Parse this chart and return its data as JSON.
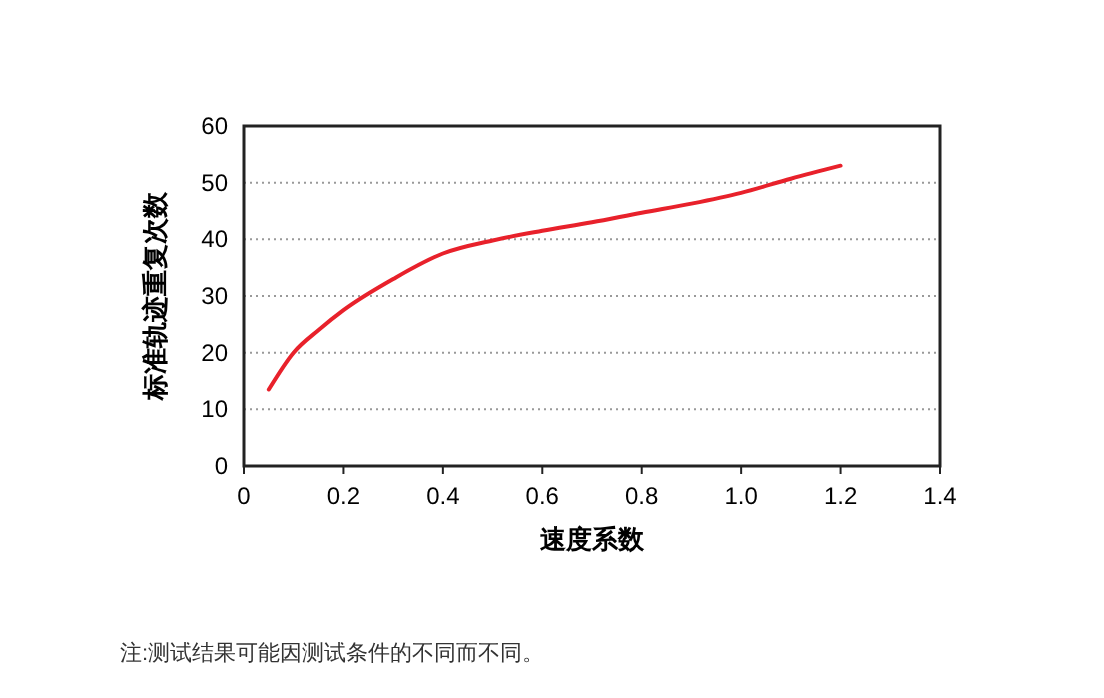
{
  "chart_data": {
    "type": "line",
    "xlabel": "速度系数",
    "ylabel": "标准轨迹重复次数",
    "annotations": [
      "注:测试结果可能因测试条件的不同而不同。"
    ],
    "series": [
      {
        "color": "#e8212b",
        "x": [
          0.05,
          0.1,
          0.15,
          0.2,
          0.3,
          0.4,
          0.5,
          0.6,
          0.7,
          0.8,
          0.9,
          1.0,
          1.1,
          1.2
        ],
        "values": [
          13.5,
          20,
          24,
          27.5,
          33,
          37.5,
          39.8,
          41.5,
          43,
          44.7,
          46.3,
          48.2,
          50.7,
          53
        ]
      }
    ],
    "xlim": [
      0,
      1.4
    ],
    "xticks": [
      0,
      {
        "value": 0.2,
        "label": "0.2"
      },
      {
        "value": 0.4,
        "label": "0.4"
      },
      {
        "value": 0.6,
        "label": "0.6"
      },
      {
        "value": 0.8,
        "label": "0.8"
      },
      {
        "value": 1,
        "label": "1.0"
      },
      {
        "value": 1.2,
        "label": "1.2"
      },
      {
        "value": 1.4,
        "label": "1.4"
      }
    ],
    "ylim": [
      0,
      60
    ],
    "yticks": [
      0,
      10,
      20,
      30,
      40,
      50,
      60
    ],
    "grid": "y",
    "marker": "none",
    "line_style": "solid"
  }
}
